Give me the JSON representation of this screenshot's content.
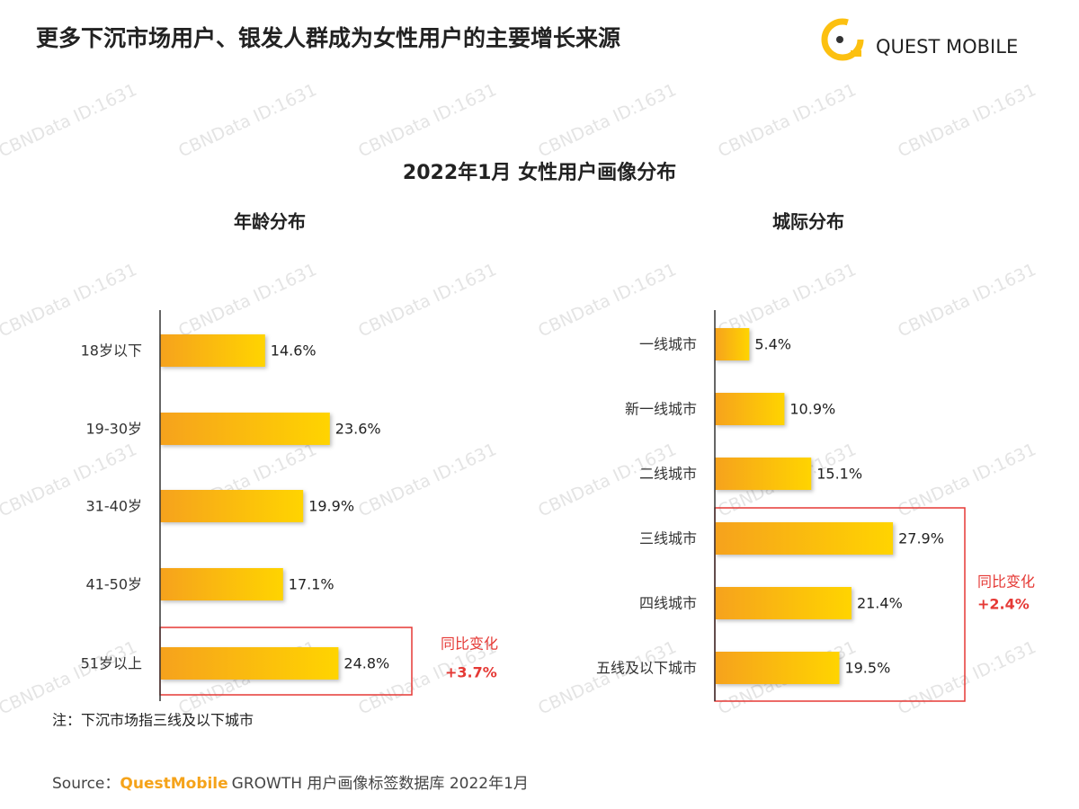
{
  "header": {
    "title": "更多下沉市场用户、银发人群成为女性用户的主要增长来源",
    "logo": "QUEST MOBILE"
  },
  "watermark": "CBNData ID:1631",
  "subtitle": "2022年1月 女性用户画像分布",
  "chart_data": [
    {
      "type": "bar",
      "orientation": "horizontal",
      "title": "年龄分布",
      "categories": [
        "18岁以下",
        "19-30岁",
        "31-40岁",
        "41-50岁",
        "51岁以上"
      ],
      "values": [
        14.6,
        23.6,
        19.9,
        17.1,
        24.8
      ],
      "value_labels": [
        "14.6%",
        "23.6%",
        "19.9%",
        "17.1%",
        "24.8%"
      ],
      "gradient": [
        "#f6a21d",
        "#ffd400"
      ],
      "annotation": {
        "label": "同比变化",
        "change": "+3.7%"
      }
    },
    {
      "type": "bar",
      "orientation": "horizontal",
      "title": "城际分布",
      "categories": [
        "一线城市",
        "新一线城市",
        "二线城市",
        "三线城市",
        "四线城市",
        "五线及以下城市"
      ],
      "values": [
        5.4,
        10.9,
        15.1,
        27.9,
        21.4,
        19.5
      ],
      "value_labels": [
        "5.4%",
        "10.9%",
        "15.1%",
        "27.9%",
        "21.4%",
        "19.5%"
      ],
      "gradient": [
        "#f6a21d",
        "#ffd400"
      ],
      "annotation": {
        "label": "同比变化",
        "change": "+2.4%"
      }
    }
  ],
  "note": "注：下沉市场指三线及以下城市",
  "source": {
    "label": "Source：",
    "brand": "QuestMobile",
    "text": "GROWTH 用户画像标签数据库 2022年1月"
  }
}
